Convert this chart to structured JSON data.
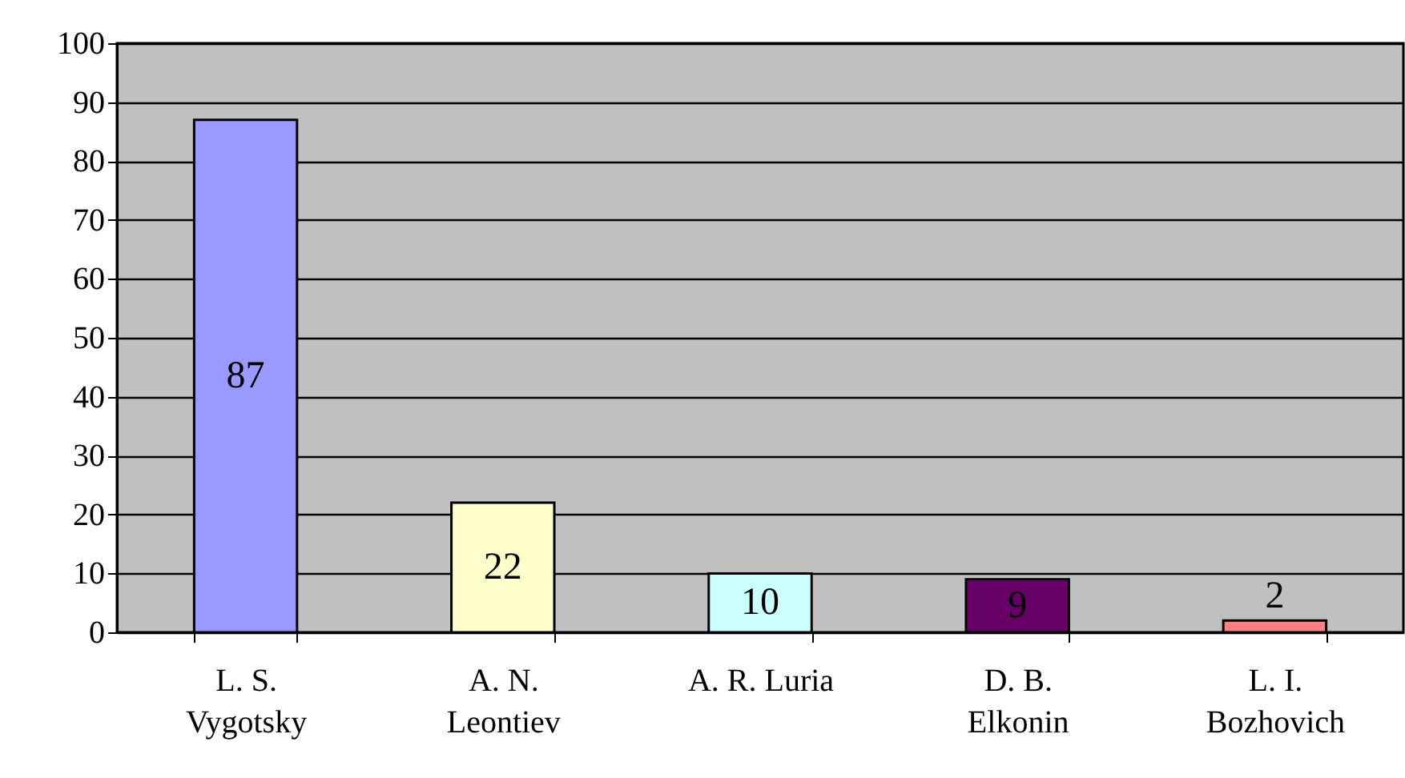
{
  "chart_data": {
    "type": "bar",
    "categories": [
      "L. S. Vygotsky",
      "A. N. Leontiev",
      "A. R. Luria",
      "D. B. Elkonin",
      "L. I. Bozhovich"
    ],
    "values": [
      87,
      22,
      10,
      9,
      2
    ],
    "colors": [
      "#9999ff",
      "#ffffcc",
      "#ccffff",
      "#660066",
      "#ff8080"
    ],
    "ylim": [
      0,
      100
    ],
    "yticks": [
      0,
      10,
      20,
      30,
      40,
      50,
      60,
      70,
      80,
      90,
      100
    ],
    "grid": "y",
    "data_labels": true
  }
}
